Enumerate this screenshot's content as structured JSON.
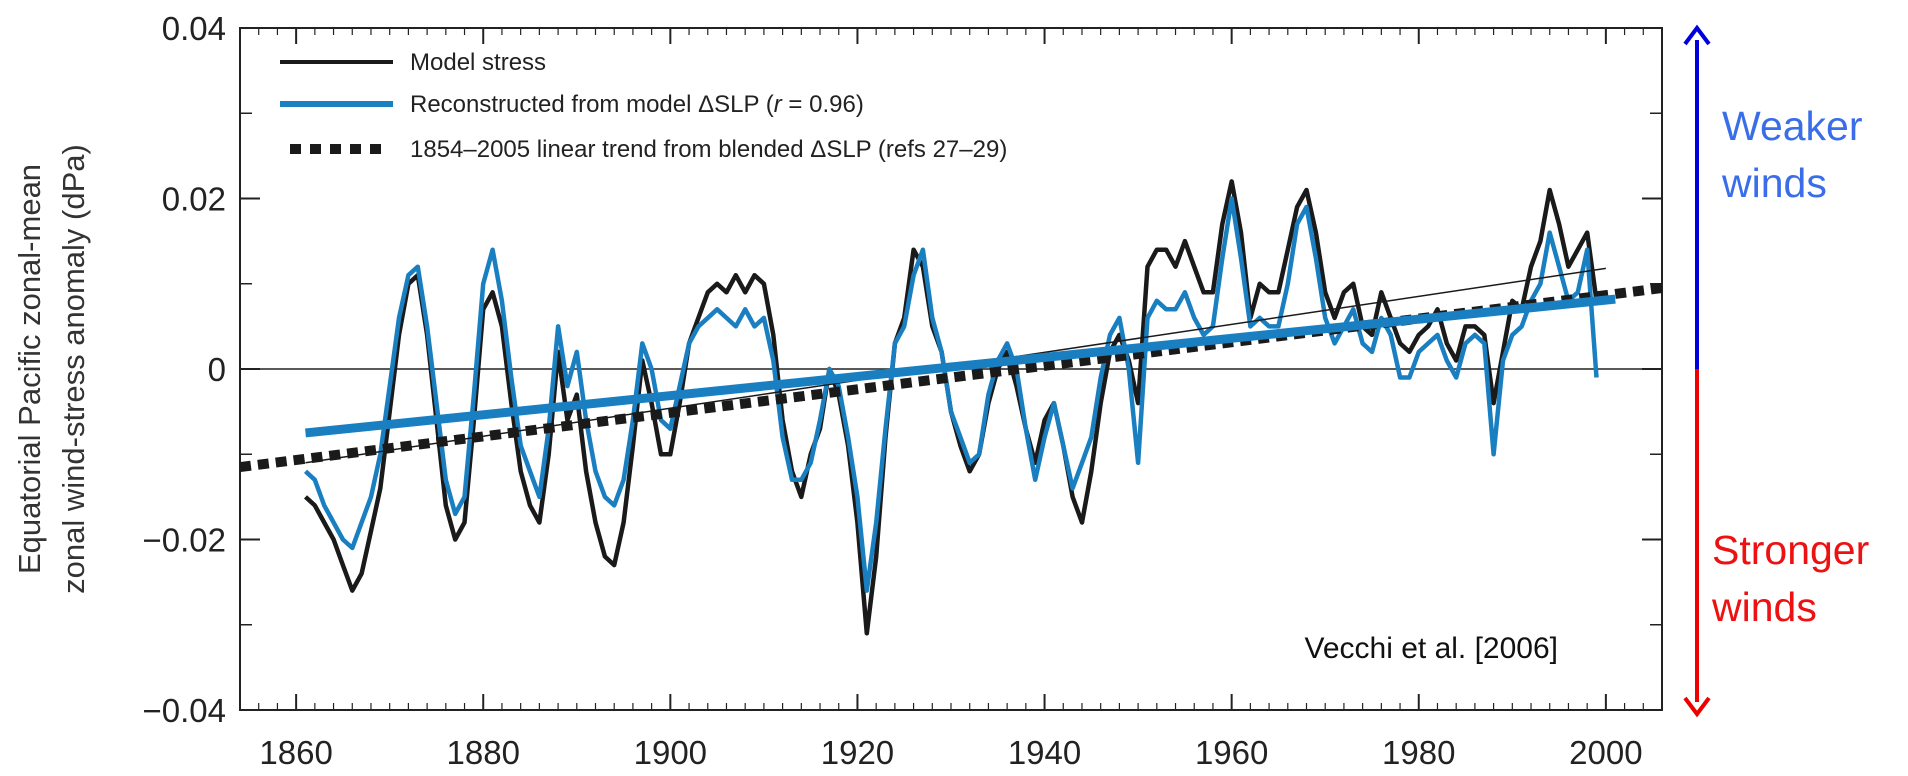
{
  "chart_data": {
    "type": "line",
    "xlim": [
      1854,
      2006
    ],
    "ylim": [
      -0.04,
      0.04
    ],
    "x_ticks": [
      1860,
      1880,
      1900,
      1920,
      1940,
      1960,
      1980,
      2000
    ],
    "x_tick_labels": [
      "1860",
      "1880",
      "1900",
      "1920",
      "1940",
      "1960",
      "1980",
      "2000"
    ],
    "y_ticks": [
      -0.04,
      -0.02,
      0,
      0.02,
      0.04
    ],
    "y_tick_labels": [
      "−0.04",
      "−0.02",
      "0",
      "0.02",
      "0.04"
    ],
    "ylabel_line1": "Equatorial Pacific zonal-mean",
    "ylabel_line2": "zonal wind-stress anomaly (dPa)",
    "grid": false,
    "legend_position": "top-left",
    "legend": {
      "model_stress": "Model stress",
      "reconstructed_pre": "Reconstructed from model ΔSLP (",
      "reconstructed_r": "r",
      "reconstructed_post": " = 0.96)",
      "trend": "1854–2005 linear trend from blended ΔSLP (refs 27–29)"
    },
    "annotation": "Vecchi et al. [2006]",
    "weaker_label_1": "Weaker",
    "weaker_label_2": "winds",
    "stronger_label_1": "Stronger",
    "stronger_label_2": "winds",
    "colors": {
      "model": "#1a1a1a",
      "reconstructed": "#1a7fc1",
      "trend": "#1a1a1a",
      "weaker": "#3a6ee8",
      "stronger": "#ee1111",
      "arrow_up": "#0000dd",
      "arrow_down": "#ee0000"
    },
    "series": [
      {
        "name": "Model stress",
        "x": [
          1861,
          1862,
          1863,
          1864,
          1865,
          1866,
          1867,
          1868,
          1869,
          1870,
          1871,
          1872,
          1873,
          1874,
          1875,
          1876,
          1877,
          1878,
          1879,
          1880,
          1881,
          1882,
          1883,
          1884,
          1885,
          1886,
          1887,
          1888,
          1889,
          1890,
          1891,
          1892,
          1893,
          1894,
          1895,
          1896,
          1897,
          1898,
          1899,
          1900,
          1901,
          1902,
          1903,
          1904,
          1905,
          1906,
          1907,
          1908,
          1909,
          1910,
          1911,
          1912,
          1913,
          1914,
          1915,
          1916,
          1917,
          1918,
          1919,
          1920,
          1921,
          1922,
          1923,
          1924,
          1925,
          1926,
          1927,
          1928,
          1929,
          1930,
          1931,
          1932,
          1933,
          1934,
          1935,
          1936,
          1937,
          1938,
          1939,
          1940,
          1941,
          1942,
          1943,
          1944,
          1945,
          1946,
          1947,
          1948,
          1949,
          1950,
          1951,
          1952,
          1953,
          1954,
          1955,
          1956,
          1957,
          1958,
          1959,
          1960,
          1961,
          1962,
          1963,
          1964,
          1965,
          1966,
          1967,
          1968,
          1969,
          1970,
          1971,
          1972,
          1973,
          1974,
          1975,
          1976,
          1977,
          1978,
          1979,
          1980,
          1981,
          1982,
          1983,
          1984,
          1985,
          1986,
          1987,
          1988,
          1989,
          1990,
          1991,
          1992,
          1993,
          1994,
          1995,
          1996,
          1997,
          1998,
          1999
        ],
        "y": [
          -0.015,
          -0.016,
          -0.018,
          -0.02,
          -0.023,
          -0.026,
          -0.024,
          -0.019,
          -0.014,
          -0.005,
          0.004,
          0.01,
          0.011,
          0.004,
          -0.006,
          -0.016,
          -0.02,
          -0.018,
          -0.006,
          0.007,
          0.009,
          0.005,
          -0.004,
          -0.012,
          -0.016,
          -0.018,
          -0.01,
          0.002,
          -0.006,
          -0.003,
          -0.012,
          -0.018,
          -0.022,
          -0.023,
          -0.018,
          -0.009,
          0.001,
          -0.004,
          -0.01,
          -0.01,
          -0.004,
          0.003,
          0.006,
          0.009,
          0.01,
          0.009,
          0.011,
          0.009,
          0.011,
          0.01,
          0.004,
          -0.006,
          -0.012,
          -0.015,
          -0.01,
          -0.007,
          0.0,
          -0.003,
          -0.009,
          -0.018,
          -0.031,
          -0.022,
          -0.008,
          0.003,
          0.006,
          0.014,
          0.012,
          0.005,
          0.002,
          -0.005,
          -0.009,
          -0.012,
          -0.01,
          -0.004,
          0.0,
          0.002,
          -0.002,
          -0.007,
          -0.011,
          -0.006,
          -0.004,
          -0.009,
          -0.015,
          -0.018,
          -0.012,
          -0.004,
          0.002,
          0.004,
          0.001,
          -0.004,
          0.012,
          0.014,
          0.014,
          0.012,
          0.015,
          0.012,
          0.009,
          0.009,
          0.017,
          0.022,
          0.016,
          0.006,
          0.01,
          0.009,
          0.009,
          0.014,
          0.019,
          0.021,
          0.016,
          0.009,
          0.006,
          0.009,
          0.01,
          0.005,
          0.004,
          0.009,
          0.006,
          0.003,
          0.002,
          0.004,
          0.005,
          0.007,
          0.003,
          0.001,
          0.005,
          0.005,
          0.004,
          -0.004,
          0.002,
          0.008,
          0.007,
          0.012,
          0.015,
          0.021,
          0.017,
          0.012,
          0.014,
          0.016,
          0.008
        ]
      },
      {
        "name": "Reconstructed from model ΔSLP (r = 0.96)",
        "x": [
          1861,
          1862,
          1863,
          1864,
          1865,
          1866,
          1867,
          1868,
          1869,
          1870,
          1871,
          1872,
          1873,
          1874,
          1875,
          1876,
          1877,
          1878,
          1879,
          1880,
          1881,
          1882,
          1883,
          1884,
          1885,
          1886,
          1887,
          1888,
          1889,
          1890,
          1891,
          1892,
          1893,
          1894,
          1895,
          1896,
          1897,
          1898,
          1899,
          1900,
          1901,
          1902,
          1903,
          1904,
          1905,
          1906,
          1907,
          1908,
          1909,
          1910,
          1911,
          1912,
          1913,
          1914,
          1915,
          1916,
          1917,
          1918,
          1919,
          1920,
          1921,
          1922,
          1923,
          1924,
          1925,
          1926,
          1927,
          1928,
          1929,
          1930,
          1931,
          1932,
          1933,
          1934,
          1935,
          1936,
          1937,
          1938,
          1939,
          1940,
          1941,
          1942,
          1943,
          1944,
          1945,
          1946,
          1947,
          1948,
          1949,
          1950,
          1951,
          1952,
          1953,
          1954,
          1955,
          1956,
          1957,
          1958,
          1959,
          1960,
          1961,
          1962,
          1963,
          1964,
          1965,
          1966,
          1967,
          1968,
          1969,
          1970,
          1971,
          1972,
          1973,
          1974,
          1975,
          1976,
          1977,
          1978,
          1979,
          1980,
          1981,
          1982,
          1983,
          1984,
          1985,
          1986,
          1987,
          1988,
          1989,
          1990,
          1991,
          1992,
          1993,
          1994,
          1995,
          1996,
          1997,
          1998,
          1999
        ],
        "y": [
          -0.012,
          -0.013,
          -0.016,
          -0.018,
          -0.02,
          -0.021,
          -0.018,
          -0.015,
          -0.01,
          -0.002,
          0.006,
          0.011,
          0.012,
          0.005,
          -0.004,
          -0.013,
          -0.017,
          -0.015,
          -0.003,
          0.01,
          0.014,
          0.008,
          -0.001,
          -0.009,
          -0.012,
          -0.015,
          -0.007,
          0.005,
          -0.002,
          0.002,
          -0.006,
          -0.012,
          -0.015,
          -0.016,
          -0.013,
          -0.006,
          0.003,
          0.0,
          -0.006,
          -0.007,
          -0.002,
          0.003,
          0.005,
          0.006,
          0.007,
          0.006,
          0.005,
          0.007,
          0.005,
          0.006,
          0.001,
          -0.008,
          -0.013,
          -0.013,
          -0.011,
          -0.006,
          0.0,
          -0.002,
          -0.008,
          -0.015,
          -0.026,
          -0.018,
          -0.007,
          0.003,
          0.005,
          0.011,
          0.014,
          0.006,
          0.002,
          -0.005,
          -0.008,
          -0.011,
          -0.01,
          -0.003,
          0.001,
          0.003,
          0.0,
          -0.007,
          -0.013,
          -0.008,
          -0.004,
          -0.009,
          -0.014,
          -0.011,
          -0.008,
          -0.001,
          0.004,
          0.006,
          0.0,
          -0.011,
          0.006,
          0.008,
          0.007,
          0.007,
          0.009,
          0.006,
          0.004,
          0.005,
          0.013,
          0.02,
          0.013,
          0.005,
          0.006,
          0.005,
          0.005,
          0.01,
          0.017,
          0.019,
          0.013,
          0.006,
          0.003,
          0.005,
          0.007,
          0.003,
          0.002,
          0.006,
          0.004,
          -0.001,
          -0.001,
          0.002,
          0.003,
          0.004,
          0.001,
          -0.001,
          0.003,
          0.004,
          0.003,
          -0.01,
          0.001,
          0.004,
          0.005,
          0.008,
          0.01,
          0.016,
          0.012,
          0.008,
          0.009,
          0.014,
          -0.001
        ]
      }
    ],
    "trends": [
      {
        "x": [
          1861,
          2001
        ],
        "y": [
          -0.0075,
          0.0082
        ]
      },
      {
        "x": [
          1854,
          2006
        ],
        "y": [
          -0.0115,
          0.0095
        ]
      },
      {
        "x": [
          1861,
          2000
        ],
        "y": [
          -0.011,
          0.0118
        ]
      }
    ]
  }
}
